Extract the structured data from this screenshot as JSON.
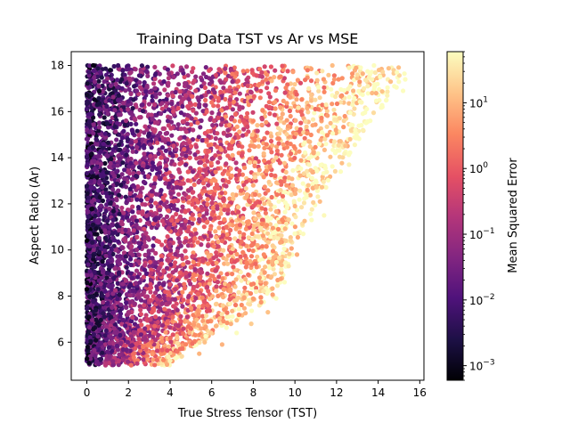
{
  "chart_data": {
    "type": "scatter",
    "title": "Training Data TST vs Ar vs MSE",
    "xlabel": "True Stress Tensor (TST)",
    "ylabel": "Aspect Ratio (Ar)",
    "xlim": [
      -0.75,
      16.2
    ],
    "ylim": [
      4.35,
      18.6
    ],
    "xticks": [
      "0",
      "2",
      "4",
      "6",
      "8",
      "10",
      "12",
      "14",
      "16"
    ],
    "yticks": [
      "6",
      "8",
      "10",
      "12",
      "14",
      "16",
      "18"
    ],
    "grid": false,
    "colorbar": {
      "label": "Mean Squared Error",
      "scale": "log",
      "range": [
        0.0006,
        60
      ],
      "ticks": [
        {
          "value": 0.001,
          "base": "10",
          "exp": "−3"
        },
        {
          "value": 0.01,
          "base": "10",
          "exp": "−2"
        },
        {
          "value": 0.1,
          "base": "10",
          "exp": "−1"
        },
        {
          "value": 1,
          "base": "10",
          "exp": "0"
        },
        {
          "value": 10,
          "base": "10",
          "exp": "1"
        }
      ],
      "colormap": "magma"
    },
    "point_count_approx": 20000,
    "distribution": {
      "ar_range": [
        5,
        18
      ],
      "tst_min": 0,
      "tst_max_at_ar": [
        [
          5,
          4
        ],
        [
          8,
          9
        ],
        [
          10,
          10
        ],
        [
          12,
          11
        ],
        [
          14,
          12.5
        ],
        [
          16,
          14
        ],
        [
          17.5,
          15.3
        ]
      ],
      "mse_trend": "increases with TST; low MSE (purple/black) near TST 0–2, high MSE (orange/yellow) near outer edge"
    },
    "series": [
      {
        "values": [
          [
            15.3,
            17.4
          ],
          [
            15.2,
            16.9
          ],
          [
            14.9,
            17.7
          ],
          [
            14.6,
            17.3
          ],
          [
            14.1,
            17.5
          ],
          [
            13.8,
            18.0
          ],
          [
            14.4,
            16.5
          ],
          [
            13.9,
            16.8
          ],
          [
            14.2,
            16.2
          ],
          [
            13.5,
            17.1
          ],
          [
            13.0,
            17.6
          ],
          [
            13.2,
            16.4
          ],
          [
            12.8,
            16.9
          ],
          [
            12.6,
            17.9
          ],
          [
            12.1,
            17.4
          ],
          [
            11.8,
            18.0
          ],
          [
            12.4,
            15.8
          ],
          [
            12.9,
            15.2
          ],
          [
            12.6,
            13.7
          ],
          [
            12.2,
            13.4
          ],
          [
            11.9,
            14.7
          ],
          [
            11.5,
            16.3
          ],
          [
            11.3,
            15.1
          ],
          [
            11.0,
            13.0
          ],
          [
            11.2,
            12.1
          ],
          [
            10.9,
            14.2
          ],
          [
            11.4,
            11.5
          ],
          [
            10.6,
            12.6
          ],
          [
            10.4,
            10.7
          ],
          [
            10.8,
            11.3
          ],
          [
            10.1,
            9.8
          ],
          [
            10.0,
            11.9
          ],
          [
            9.8,
            10.4
          ],
          [
            9.7,
            9.3
          ],
          [
            9.6,
            12.8
          ],
          [
            9.5,
            8.6
          ],
          [
            9.2,
            10.9
          ],
          [
            9.1,
            7.9
          ],
          [
            8.9,
            9.5
          ],
          [
            8.8,
            13.6
          ],
          [
            8.7,
            7.3
          ],
          [
            8.6,
            11.6
          ],
          [
            8.3,
            8.8
          ],
          [
            8.2,
            10.2
          ],
          [
            8.0,
            15.6
          ],
          [
            7.9,
            6.8
          ],
          [
            7.7,
            12.4
          ],
          [
            7.5,
            9.9
          ],
          [
            7.3,
            14.9
          ],
          [
            7.2,
            6.4
          ],
          [
            7.0,
            17.3
          ],
          [
            6.9,
            8.2
          ],
          [
            6.7,
            11.0
          ],
          [
            6.5,
            5.9
          ],
          [
            6.3,
            13.8
          ],
          [
            6.2,
            9.1
          ],
          [
            6.0,
            16.4
          ],
          [
            5.8,
            7.6
          ],
          [
            5.6,
            12.9
          ],
          [
            5.4,
            5.5
          ],
          [
            5.2,
            10.5
          ],
          [
            5.1,
            15.2
          ],
          [
            4.9,
            8.0
          ],
          [
            4.6,
            17.8
          ],
          [
            4.4,
            6.7
          ],
          [
            4.2,
            11.8
          ],
          [
            4.0,
            5.2
          ],
          [
            3.8,
            14.3
          ],
          [
            3.6,
            9.4
          ],
          [
            3.3,
            7.1
          ],
          [
            3.1,
            16.9
          ],
          [
            2.9,
            12.2
          ],
          [
            2.7,
            5.8
          ],
          [
            2.5,
            10.3
          ],
          [
            2.3,
            15.7
          ],
          [
            2.1,
            8.5
          ],
          [
            1.8,
            13.1
          ],
          [
            1.6,
            6.3
          ],
          [
            1.4,
            17.2
          ],
          [
            1.2,
            11.1
          ],
          [
            1.0,
            7.7
          ],
          [
            0.8,
            14.6
          ],
          [
            0.6,
            9.9
          ],
          [
            0.4,
            5.4
          ],
          [
            0.2,
            12.7
          ],
          [
            0.0,
            16.1
          ],
          [
            0.0,
            8.3
          ],
          [
            0.1,
            5.1
          ],
          [
            0.3,
            18.0
          ],
          [
            0.9,
            5.0
          ],
          [
            1.5,
            18.0
          ]
        ]
      }
    ]
  }
}
